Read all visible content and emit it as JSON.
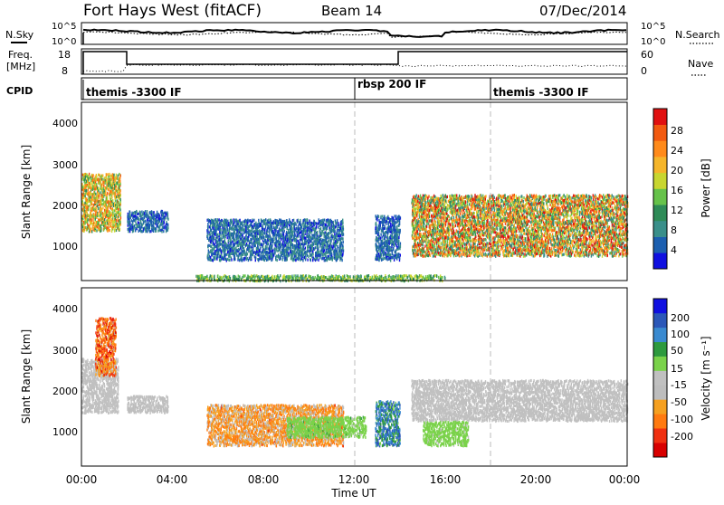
{
  "title": {
    "station": "Fort Hays West (fitACF)",
    "beam": "Beam 14",
    "date": "07/Dec/2014"
  },
  "noise_panel": {
    "left_label": "N.Sky",
    "left_ticks": [
      "10^5",
      "10^0"
    ],
    "right_label": "N.Search",
    "right_ticks": [
      "10^5",
      "10^0"
    ]
  },
  "freq_panel": {
    "left_label_line1": "Freq.",
    "left_label_line2": "[MHz]",
    "left_ticks": [
      "18",
      "8"
    ],
    "right_label": "Nave",
    "right_ticks": [
      "60",
      "0"
    ]
  },
  "cpid_panel": {
    "label": "CPID",
    "segments": [
      {
        "start_hour": 0,
        "text": "themis -3300 IF"
      },
      {
        "start_hour": 12,
        "text": "rbsp 200 IF"
      },
      {
        "start_hour": 18,
        "text": "themis -3300 IF"
      }
    ]
  },
  "colors": {
    "power_scale": [
      "#1010e0",
      "#1c5fb0",
      "#3a8f8a",
      "#2e8b57",
      "#66c24a",
      "#c8d630",
      "#f5b52a",
      "#ff8a1a",
      "#f25a10",
      "#e01010"
    ],
    "velocity_scale": [
      "#1010e0",
      "#2b57b8",
      "#3a8ad0",
      "#2e9a3e",
      "#7ad24a",
      "#c0c0c0",
      "#bdbdbd",
      "#f5a020",
      "#ff7a10",
      "#f03010",
      "#d80000"
    ]
  },
  "chart_data": [
    {
      "type": "heatmap",
      "name": "power",
      "ylabel": "Slant Range [km]",
      "yticks": [
        "1000",
        "2000",
        "3000",
        "4000"
      ],
      "ylim": [
        180,
        4500
      ],
      "xlim": [
        0,
        24
      ],
      "dashed_markers_hours": [
        12,
        18
      ],
      "colorbar": {
        "label": "Power [dB]",
        "ticks": [
          "4",
          "8",
          "12",
          "16",
          "20",
          "24",
          "28"
        ],
        "range": [
          0,
          30
        ]
      },
      "echo_regions": [
        {
          "t0": 0.0,
          "t1": 1.7,
          "r0": 1400,
          "r1": 2800,
          "value_min": 10,
          "value_max": 26
        },
        {
          "t0": 2.0,
          "t1": 3.8,
          "r0": 1400,
          "r1": 1900,
          "value_min": 2,
          "value_max": 8
        },
        {
          "t0": 5.5,
          "t1": 11.5,
          "r0": 700,
          "r1": 1700,
          "value_min": 2,
          "value_max": 9
        },
        {
          "t0": 12.9,
          "t1": 14.0,
          "r0": 700,
          "r1": 1800,
          "value_min": 2,
          "value_max": 8
        },
        {
          "t0": 14.5,
          "t1": 24.0,
          "r0": 800,
          "r1": 2300,
          "value_min": 6,
          "value_max": 30
        },
        {
          "t0": 5.0,
          "t1": 16.0,
          "r0": 200,
          "r1": 350,
          "value_min": 8,
          "value_max": 18
        }
      ]
    },
    {
      "type": "heatmap",
      "name": "velocity",
      "ylabel": "Slant Range [km]",
      "yticks": [
        "1000",
        "2000",
        "3000",
        "4000"
      ],
      "ylim": [
        180,
        4500
      ],
      "xlim": [
        0,
        24
      ],
      "dashed_markers_hours": [
        12,
        18
      ],
      "xticks": [
        "00:00",
        "04:00",
        "08:00",
        "12:00",
        "16:00",
        "20:00",
        "00:00"
      ],
      "xlabel": "Time UT",
      "colorbar": {
        "label": "Velocity [m s⁻¹]",
        "ticks": [
          "200",
          "100",
          "50",
          "15",
          "-15",
          "-50",
          "-100",
          "-200"
        ],
        "range": [
          -250,
          250
        ]
      },
      "echo_regions": [
        {
          "t0": 0.0,
          "t1": 1.6,
          "r0": 1500,
          "r1": 2800,
          "value_min": -20,
          "value_max": 10
        },
        {
          "t0": 0.6,
          "t1": 1.5,
          "r0": 2400,
          "r1": 3800,
          "value_min": -220,
          "value_max": -60
        },
        {
          "t0": 2.0,
          "t1": 3.8,
          "r0": 1500,
          "r1": 1900,
          "value_min": -40,
          "value_max": 10
        },
        {
          "t0": 5.5,
          "t1": 11.5,
          "r0": 700,
          "r1": 1700,
          "value_min": -160,
          "value_max": -30
        },
        {
          "t0": 9.0,
          "t1": 12.5,
          "r0": 900,
          "r1": 1400,
          "value_min": 20,
          "value_max": 70
        },
        {
          "t0": 12.9,
          "t1": 14.0,
          "r0": 700,
          "r1": 1800,
          "value_min": 60,
          "value_max": 200
        },
        {
          "t0": 14.5,
          "t1": 24.0,
          "r0": 1300,
          "r1": 2300,
          "value_min": -14,
          "value_max": 14
        },
        {
          "t0": 15.0,
          "t1": 17.0,
          "r0": 700,
          "r1": 1300,
          "value_min": 20,
          "value_max": 60
        }
      ]
    }
  ]
}
